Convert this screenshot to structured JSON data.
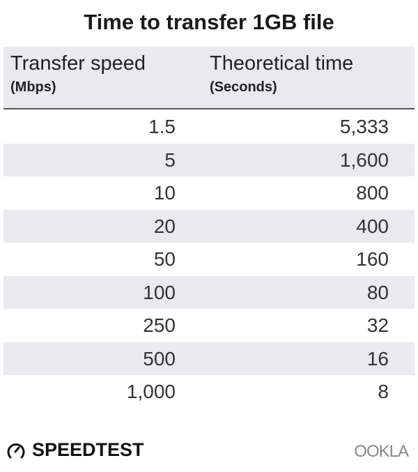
{
  "chart_data": {
    "type": "table",
    "title": "Time to transfer 1GB file",
    "columns": [
      {
        "label": "Transfer speed",
        "unit": "(Mbps)"
      },
      {
        "label": "Theoretical time",
        "unit": "(Seconds)"
      }
    ],
    "rows": [
      [
        "1.5",
        "5,333"
      ],
      [
        "5",
        "1,600"
      ],
      [
        "10",
        "800"
      ],
      [
        "20",
        "400"
      ],
      [
        "50",
        "160"
      ],
      [
        "100",
        "80"
      ],
      [
        "250",
        "32"
      ],
      [
        "500",
        "16"
      ],
      [
        "1,000",
        "8"
      ]
    ],
    "header_background": "#e9e9ee",
    "stripe_color": "#e9e9ee"
  },
  "footer": {
    "speedtest_logo": "SPEEDTEST",
    "ookla_logo": "OOKLA",
    "icons": [
      "speedometer-icon"
    ]
  }
}
